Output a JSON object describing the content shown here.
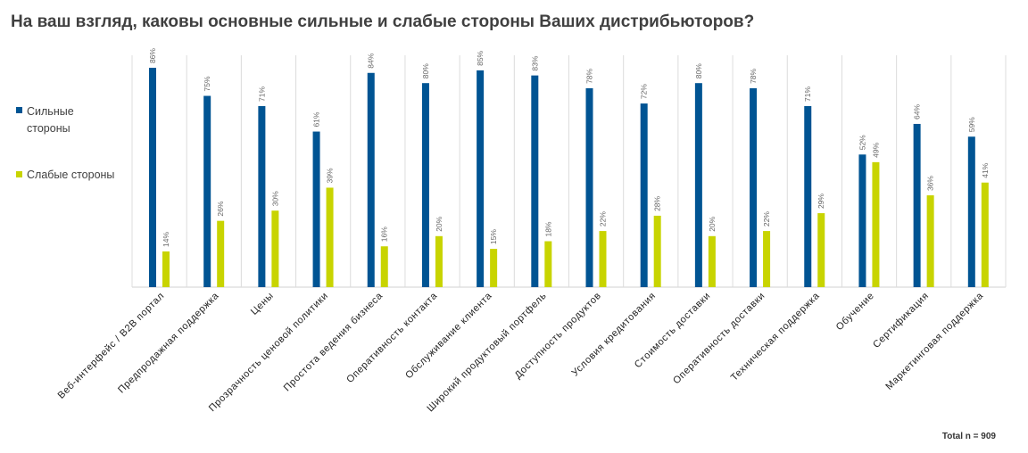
{
  "chart_data": {
    "type": "bar",
    "title": "На ваш взгляд, каковы основные сильные и слабые стороны Ваших дистрибьюторов?",
    "categories": [
      "Веб-интерфейс / B2B портал",
      "Предпродажная поддержка",
      "Цены",
      "Прозрачность ценовой политики",
      "Простота ведения бизнеса",
      "Оперативность контакта",
      "Обслуживание клиента",
      "Широкий продуктовый портфель",
      "Доступность продуктов",
      "Условия кредитования",
      "Стоимость доставки",
      "Оперативность доставки",
      "Техническая поддержка",
      "Обучение",
      "Сертификация",
      "Маркетинговая поддержка"
    ],
    "series": [
      {
        "name": "Сильные стороны",
        "color": "#005493",
        "values": [
          86,
          75,
          71,
          61,
          84,
          80,
          85,
          83,
          78,
          72,
          80,
          78,
          71,
          52,
          64,
          59
        ],
        "value_labels": [
          "86%",
          "75%",
          "71%",
          "61%",
          "84%",
          "80%",
          "85%",
          "83%",
          "78%",
          "72%",
          "80%",
          "78%",
          "71%",
          "52%",
          "64%",
          "59%"
        ]
      },
      {
        "name": "Слабые стороны",
        "color": "#c8d400",
        "values": [
          14,
          26,
          30,
          39,
          16,
          20,
          15,
          18,
          22,
          28,
          20,
          22,
          29,
          49,
          36,
          41
        ],
        "value_labels": [
          "14%",
          "26%",
          "30%",
          "39%",
          "16%",
          "20%",
          "15%",
          "18%",
          "22%",
          "28%",
          "20%",
          "22%",
          "29%",
          "49%",
          "36%",
          "41%"
        ]
      }
    ],
    "note": "Total n = 909"
  }
}
